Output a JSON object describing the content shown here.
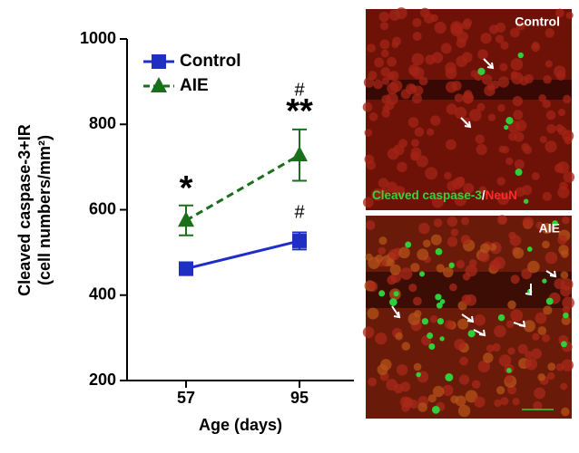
{
  "chart_data": {
    "type": "line",
    "x_label": "Age (days)",
    "y_label": [
      "Cleaved caspase-3+IR",
      "(cell numbers/mm²)"
    ],
    "categories": [
      "57",
      "95"
    ],
    "series": [
      {
        "name": "Control",
        "color": "#1f2fc4",
        "marker": "square",
        "dashed": false,
        "values": [
          462,
          527
        ],
        "errors": [
          15,
          20
        ]
      },
      {
        "name": "AIE",
        "color": "#1b6e1b",
        "marker": "triangle",
        "dashed": true,
        "values": [
          575,
          728
        ],
        "errors": [
          35,
          60
        ]
      }
    ],
    "annotations": [
      "*",
      "**",
      "#",
      "#"
    ],
    "ylim": [
      200,
      1000
    ],
    "yticks": [
      200,
      400,
      600,
      800,
      1000
    ]
  },
  "panels": [
    {
      "label": "Control",
      "caption": [
        "Cleaved caspase-3",
        "/",
        "NeuN"
      ]
    },
    {
      "label": "AIE"
    }
  ]
}
